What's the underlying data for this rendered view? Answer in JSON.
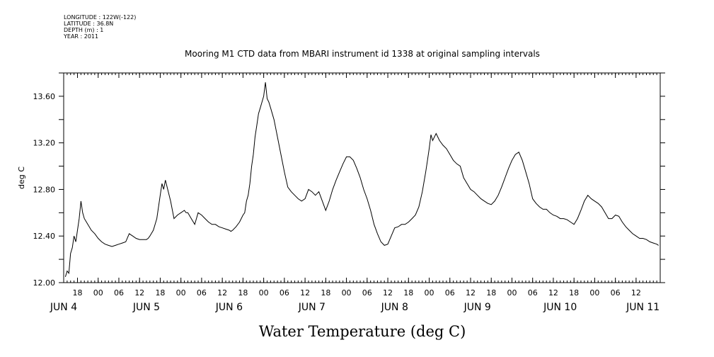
{
  "metadata": {
    "longitude": "LONGITUDE : 122W(-122)",
    "latitude": "LATITUDE : 36.8N",
    "depth": "DEPTH (m) : 1",
    "year": "YEAR : 2011"
  },
  "chart_data": {
    "type": "line",
    "title": "Mooring M1 CTD data from MBARI instrument id 1338 at original sampling intervals",
    "xlabel": "Water Temperature (deg C)",
    "ylabel": "deg C",
    "xlim": [
      14,
      187
    ],
    "ylim": [
      12.0,
      13.8
    ],
    "yticks": [
      12.0,
      12.4,
      12.8,
      13.2,
      13.6
    ],
    "ytick_labels": [
      "12.00",
      "12.40",
      "12.80",
      "13.20",
      "13.60"
    ],
    "xtick_hours": [
      18,
      24,
      30,
      36,
      42,
      48,
      54,
      60,
      66,
      72,
      78,
      84,
      90,
      96,
      102,
      108,
      114,
      120,
      126,
      132,
      138,
      144,
      150,
      156,
      162,
      168,
      174,
      180
    ],
    "xtick_labels": [
      "18",
      "00",
      "06",
      "12",
      "18",
      "00",
      "06",
      "12",
      "18",
      "00",
      "06",
      "12",
      "18",
      "00",
      "06",
      "12",
      "18",
      "00",
      "06",
      "12",
      "18",
      "00",
      "06",
      "12",
      "18",
      "00",
      "06",
      "12"
    ],
    "day_labels": [
      {
        "hour": 14,
        "text": "JUN  4"
      },
      {
        "hour": 38,
        "text": "JUN  5"
      },
      {
        "hour": 62,
        "text": "JUN  6"
      },
      {
        "hour": 86,
        "text": "JUN  7"
      },
      {
        "hour": 110,
        "text": "JUN  8"
      },
      {
        "hour": 134,
        "text": "JUN  9"
      },
      {
        "hour": 158,
        "text": "JUN 10"
      },
      {
        "hour": 182,
        "text": "JUN 11"
      }
    ],
    "series": [
      {
        "x": [
          14.5,
          15.0,
          15.5,
          16.0,
          16.5,
          17.0,
          17.5,
          18.0,
          18.5,
          19.0,
          19.5,
          20.0,
          21.0,
          22.0,
          23.0,
          24.0,
          25.0,
          26.0,
          27.0,
          28.0,
          29.0,
          30.0,
          31.0,
          32.0,
          33.0,
          34.0,
          35.0,
          36.0,
          37.0,
          38.0,
          38.5,
          39.0,
          40.0,
          41.0,
          42.0,
          42.5,
          43.0,
          43.5,
          44.0,
          45.0,
          46.0,
          47.0,
          48.0,
          49.0,
          49.5,
          50.0,
          51.0,
          52.0,
          53.0,
          54.0,
          55.0,
          56.0,
          57.0,
          58.0,
          59.0,
          60.0,
          61.0,
          62.0,
          62.5,
          63.0,
          64.0,
          65.0,
          66.0,
          66.5,
          67.0,
          67.5,
          68.0,
          68.5,
          69.0,
          69.5,
          70.0,
          70.5,
          71.0,
          71.5,
          72.0,
          72.5,
          73.0,
          73.5,
          74.0,
          75.0,
          76.0,
          77.0,
          78.0,
          79.0,
          80.0,
          81.0,
          82.0,
          83.0,
          84.0,
          85.0,
          86.0,
          87.0,
          88.0,
          89.0,
          90.0,
          91.0,
          92.0,
          93.0,
          94.0,
          95.0,
          96.0,
          97.0,
          98.0,
          99.0,
          100.0,
          101.0,
          102.0,
          103.0,
          104.0,
          105.0,
          106.0,
          107.0,
          108.0,
          109.0,
          110.0,
          111.0,
          112.0,
          113.0,
          114.0,
          115.0,
          116.0,
          117.0,
          118.0,
          119.0,
          119.5,
          120.0,
          120.5,
          121.0,
          122.0,
          123.0,
          124.0,
          125.0,
          126.0,
          127.0,
          128.0,
          129.0,
          130.0,
          131.0,
          132.0,
          133.0,
          134.0,
          135.0,
          136.0,
          137.0,
          138.0,
          139.0,
          140.0,
          141.0,
          142.0,
          143.0,
          144.0,
          145.0,
          146.0,
          147.0,
          148.0,
          149.0,
          150.0,
          151.0,
          152.0,
          153.0,
          154.0,
          155.0,
          156.0,
          157.0,
          158.0,
          159.0,
          160.0,
          161.0,
          162.0,
          163.0,
          164.0,
          165.0,
          166.0,
          167.0,
          168.0,
          169.0,
          170.0,
          171.0,
          172.0,
          173.0,
          174.0,
          175.0,
          176.0,
          177.0,
          178.0,
          179.0,
          180.0,
          181.0,
          182.0,
          183.0,
          184.0,
          185.0,
          186.0,
          186.5
        ],
        "y": [
          12.05,
          12.1,
          12.08,
          12.25,
          12.3,
          12.4,
          12.35,
          12.45,
          12.55,
          12.7,
          12.6,
          12.55,
          12.5,
          12.45,
          12.42,
          12.38,
          12.35,
          12.33,
          12.32,
          12.31,
          12.32,
          12.33,
          12.34,
          12.35,
          12.42,
          12.4,
          12.38,
          12.37,
          12.37,
          12.37,
          12.38,
          12.4,
          12.45,
          12.55,
          12.75,
          12.85,
          12.8,
          12.88,
          12.82,
          12.7,
          12.55,
          12.58,
          12.6,
          12.62,
          12.6,
          12.6,
          12.55,
          12.5,
          12.6,
          12.58,
          12.55,
          12.52,
          12.5,
          12.5,
          12.48,
          12.47,
          12.46,
          12.45,
          12.44,
          12.45,
          12.48,
          12.52,
          12.58,
          12.6,
          12.7,
          12.75,
          12.85,
          13.0,
          13.1,
          13.25,
          13.35,
          13.45,
          13.5,
          13.55,
          13.6,
          13.72,
          13.58,
          13.55,
          13.5,
          13.4,
          13.25,
          13.1,
          12.95,
          12.82,
          12.78,
          12.75,
          12.72,
          12.7,
          12.72,
          12.8,
          12.78,
          12.75,
          12.78,
          12.7,
          12.62,
          12.7,
          12.8,
          12.88,
          12.95,
          13.02,
          13.08,
          13.08,
          13.05,
          12.98,
          12.9,
          12.8,
          12.72,
          12.62,
          12.5,
          12.42,
          12.35,
          12.32,
          12.33,
          12.4,
          12.47,
          12.48,
          12.5,
          12.5,
          12.52,
          12.55,
          12.58,
          12.65,
          12.78,
          12.95,
          13.05,
          13.15,
          13.27,
          13.22,
          13.28,
          13.22,
          13.18,
          13.15,
          13.1,
          13.05,
          13.02,
          13.0,
          12.9,
          12.85,
          12.8,
          12.78,
          12.75,
          12.72,
          12.7,
          12.68,
          12.67,
          12.7,
          12.75,
          12.82,
          12.9,
          12.98,
          13.05,
          13.1,
          13.12,
          13.05,
          12.95,
          12.85,
          12.72,
          12.68,
          12.65,
          12.63,
          12.63,
          12.6,
          12.58,
          12.57,
          12.55,
          12.55,
          12.54,
          12.52,
          12.5,
          12.55,
          12.62,
          12.7,
          12.75,
          12.72,
          12.7,
          12.68,
          12.65,
          12.6,
          12.55,
          12.55,
          12.58,
          12.57,
          12.52,
          12.48,
          12.45,
          12.42,
          12.4,
          12.38,
          12.38,
          12.37,
          12.35,
          12.34,
          12.33,
          12.32
        ]
      }
    ],
    "grid": false,
    "legend": "none"
  }
}
